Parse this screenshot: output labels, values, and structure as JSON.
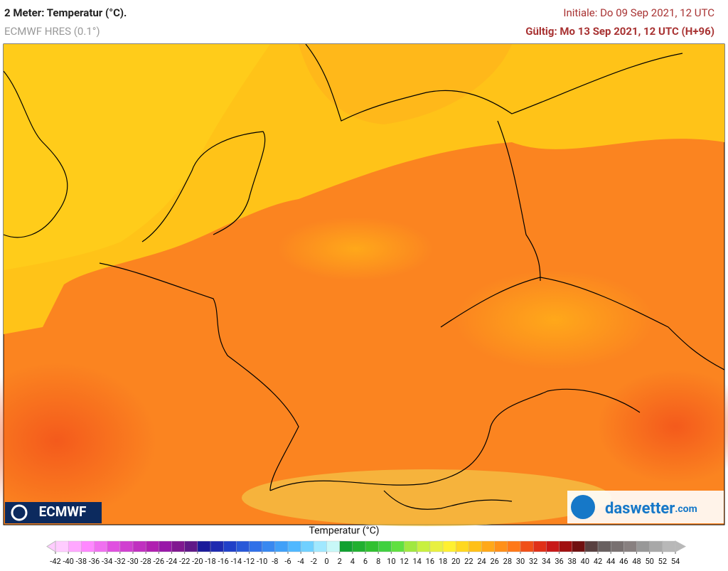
{
  "header": {
    "title": "2 Meter: Temperatur (°C).",
    "model": "ECMWF HRES (0.1°)",
    "initial": "Initiale: Do 09 Sep 2021, 12 UTC",
    "valid": "Gültig: Mo 13 Sep 2021, 12 UTC (H+96)"
  },
  "logos": {
    "left": "ECMWF",
    "right_main": "daswetter",
    "right_suffix": ".com"
  },
  "legend": {
    "title": "Temperatur (°C)",
    "ticks": [
      -42,
      -40,
      -38,
      -36,
      -34,
      -32,
      -30,
      -28,
      -26,
      -24,
      -22,
      -20,
      -18,
      -16,
      -14,
      -12,
      -10,
      -8,
      -6,
      -4,
      -2,
      0,
      2,
      4,
      6,
      8,
      10,
      12,
      14,
      16,
      18,
      20,
      22,
      24,
      26,
      28,
      30,
      32,
      34,
      36,
      38,
      40,
      42,
      44,
      46,
      48,
      50,
      52,
      54
    ],
    "colors": [
      "#ffccff",
      "#ffa8ff",
      "#ff88ff",
      "#f070f0",
      "#e050e0",
      "#d040d0",
      "#c030c0",
      "#b020b0",
      "#9818a8",
      "#801890",
      "#601888",
      "#1a1a9a",
      "#1e2ab0",
      "#2040c8",
      "#2858d8",
      "#3070e8",
      "#3888f0",
      "#40a0f8",
      "#50b8ff",
      "#70d0ff",
      "#a0e8ff",
      "#c8f8f8",
      "#10a030",
      "#20b030",
      "#30c030",
      "#40d040",
      "#60e040",
      "#a0e840",
      "#c8f040",
      "#e8f040",
      "#fff030",
      "#ffd820",
      "#ffc018",
      "#ffa818",
      "#ff9018",
      "#ff7818",
      "#f05018",
      "#e03018",
      "#c81818",
      "#a01010",
      "#701010",
      "#584040",
      "#686060",
      "#787070",
      "#888080",
      "#989898",
      "#a8a8a8",
      "#b8b8b8"
    ]
  }
}
